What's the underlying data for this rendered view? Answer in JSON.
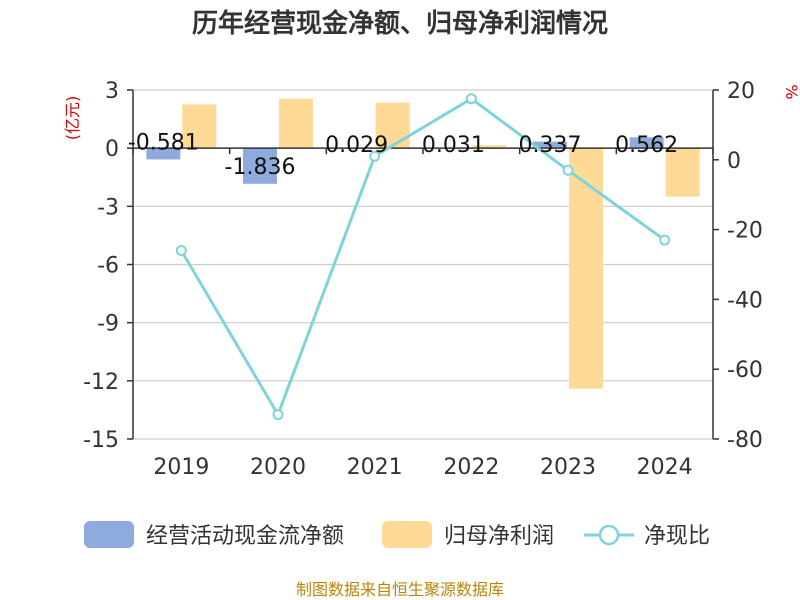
{
  "chart_data": {
    "type": "bar+line",
    "title": "历年经营现金净额、归母净利润情况",
    "categories": [
      "2019",
      "2020",
      "2021",
      "2022",
      "2023",
      "2024"
    ],
    "left_axis": {
      "label": "(亿元)",
      "min": -15,
      "max": 3,
      "step": 3,
      "ticks": [
        "3",
        "0",
        "-3",
        "-6",
        "-9",
        "-12",
        "-15"
      ]
    },
    "right_axis": {
      "label": "%",
      "min": -80,
      "max": 20,
      "step": 20,
      "ticks": [
        "20",
        "0",
        "-20",
        "-40",
        "-60",
        "-80"
      ]
    },
    "series": [
      {
        "name": "经营活动现金流净额",
        "type": "bar",
        "axis": "left",
        "values": [
          -0.581,
          -1.836,
          0.029,
          0.031,
          0.337,
          0.562
        ],
        "labels": [
          "-0.581",
          "-1.836",
          "0.029",
          "0.031",
          "0.337",
          "0.562"
        ]
      },
      {
        "name": "归母净利润",
        "type": "bar",
        "axis": "left",
        "values": [
          2.25,
          2.55,
          2.35,
          0.15,
          -12.4,
          -2.5
        ]
      },
      {
        "name": "净现比",
        "type": "line",
        "axis": "right",
        "values": [
          -26,
          -73,
          1,
          17.5,
          -3,
          -23
        ]
      }
    ],
    "grid": true,
    "legend_position": "bottom"
  },
  "colors": {
    "cash_bar": "#8faadc",
    "profit_bar": "#ffd996",
    "ratio_line": "#7fd4d9",
    "axis_unit": "#cc0000",
    "source_text": "#b8860b",
    "grid": "#cccccc"
  },
  "legend": {
    "cash_label": "经营活动现金流净额",
    "profit_label": "归母净利润",
    "ratio_label": "净现比"
  },
  "source": "制图数据来自恒生聚源数据库"
}
